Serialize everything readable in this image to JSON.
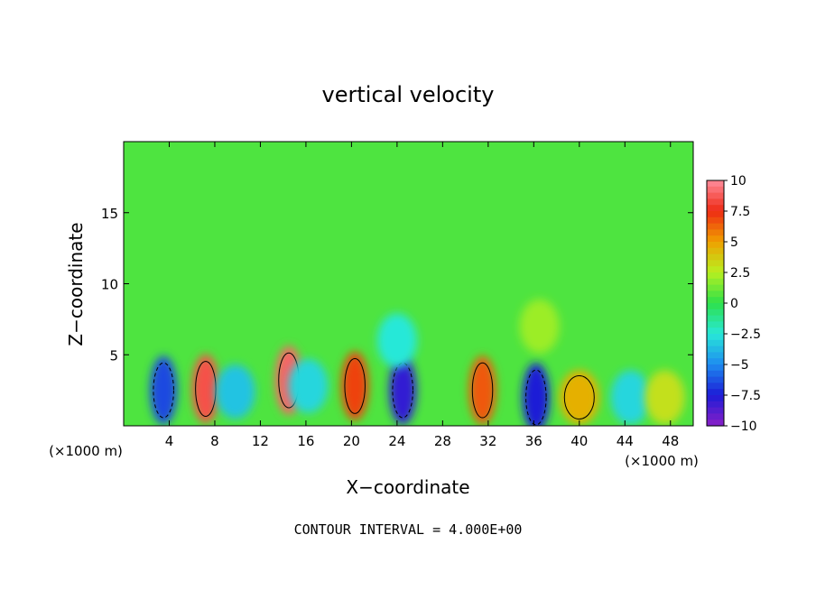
{
  "chart_data": {
    "type": "heatmap",
    "title": "vertical velocity",
    "xlabel": "X−coordinate",
    "ylabel": "Z−coordinate",
    "x_unit_left": "(×1000 m)",
    "x_unit_right": "(×1000 m)",
    "xlim": [
      0,
      50
    ],
    "ylim": [
      0,
      20
    ],
    "x_ticks": [
      "4",
      "8",
      "12",
      "16",
      "20",
      "24",
      "28",
      "32",
      "36",
      "40",
      "44",
      "48"
    ],
    "y_ticks": [
      "5",
      "10",
      "15"
    ],
    "colorbar": {
      "range": [
        -10,
        10
      ],
      "ticks": [
        "10",
        "7.5",
        "5",
        "2.5",
        "0",
        "−2.5",
        "−5",
        "−7.5",
        "−10"
      ]
    },
    "footer": "CONTOUR INTERVAL = 4.000E+00",
    "features": [
      {
        "x": 3.5,
        "z": 2.5,
        "value": -6.5
      },
      {
        "x": 7.2,
        "z": 2.6,
        "value": 8.5
      },
      {
        "x": 9.8,
        "z": 2.4,
        "value": -3.5
      },
      {
        "x": 14.5,
        "z": 3.2,
        "value": 9.0
      },
      {
        "x": 16.2,
        "z": 2.8,
        "value": -3.0
      },
      {
        "x": 20.3,
        "z": 2.8,
        "value": 7.0
      },
      {
        "x": 24.5,
        "z": 2.5,
        "value": -8.0
      },
      {
        "x": 31.5,
        "z": 2.5,
        "value": 6.5
      },
      {
        "x": 36.2,
        "z": 2.0,
        "value": -7.5
      },
      {
        "x": 40.0,
        "z": 2.0,
        "value": 4.5
      },
      {
        "x": 44.5,
        "z": 2.0,
        "value": -3.0
      },
      {
        "x": 47.5,
        "z": 2.0,
        "value": 3.0
      },
      {
        "x": 24.0,
        "z": 6.0,
        "value": -2.5
      },
      {
        "x": 36.5,
        "z": 7.0,
        "value": 2.0
      }
    ]
  }
}
